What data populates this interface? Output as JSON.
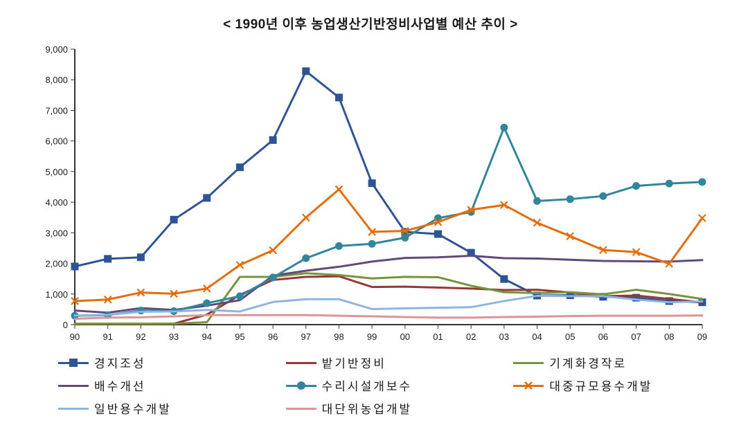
{
  "title": "< 1990년 이후 농업생산기반정비사업별 예산 추이 >",
  "chart": {
    "type": "line",
    "background_color": "#ffffff",
    "axis_color": "#333333",
    "axis_line_width": 2,
    "grid_on": false,
    "font_family": "Malgun Gothic",
    "title_fontsize": 19,
    "label_fontsize": 13,
    "legend_fontsize": 17,
    "aspect_width": 1070,
    "aspect_height": 627,
    "x": {
      "labels": [
        "90",
        "91",
        "92",
        "93",
        "94",
        "95",
        "96",
        "97",
        "98",
        "99",
        "00",
        "01",
        "02",
        "03",
        "04",
        "05",
        "06",
        "07",
        "08",
        "09"
      ]
    },
    "y": {
      "lim": [
        0,
        9000
      ],
      "tick_step": 1000,
      "tick_labels": [
        "0",
        "1,000",
        "2,000",
        "3,000",
        "4,000",
        "5,000",
        "6,000",
        "7,000",
        "8,000",
        "9,000"
      ]
    },
    "series": [
      {
        "id": "gyeongji",
        "name": "경지조성",
        "color": "#2f5496",
        "marker": "square",
        "marker_size": 10,
        "line_width": 3,
        "values": [
          1900,
          2150,
          2200,
          3430,
          4140,
          5140,
          6030,
          8280,
          7420,
          4620,
          3030,
          2960,
          2350,
          1490,
          950,
          960,
          910,
          880,
          770,
          730
        ]
      },
      {
        "id": "batgiban",
        "name": "밭기반정비",
        "color": "#953735",
        "marker": "none",
        "marker_size": 0,
        "line_width": 3,
        "values": [
          20,
          20,
          20,
          30,
          330,
          970,
          1460,
          1560,
          1580,
          1230,
          1240,
          1210,
          1180,
          1130,
          1140,
          1050,
          930,
          950,
          840,
          730
        ]
      },
      {
        "id": "gigyehwa",
        "name": "기계화경작로",
        "color": "#77933c",
        "marker": "none",
        "marker_size": 0,
        "line_width": 3,
        "values": [
          30,
          30,
          30,
          30,
          80,
          1560,
          1560,
          1680,
          1620,
          1510,
          1560,
          1550,
          1270,
          1060,
          1030,
          1060,
          990,
          1140,
          1000,
          840
        ]
      },
      {
        "id": "baesu",
        "name": "배수개선",
        "color": "#604a7b",
        "marker": "none",
        "marker_size": 0,
        "line_width": 3,
        "values": [
          460,
          390,
          540,
          480,
          620,
          800,
          1600,
          1760,
          1890,
          2060,
          2180,
          2200,
          2250,
          2170,
          2160,
          2120,
          2080,
          2070,
          2060,
          2110
        ]
      },
      {
        "id": "surisiseol",
        "name": "수리시설개보수",
        "color": "#31859c",
        "marker": "circle",
        "marker_size": 10,
        "line_width": 3,
        "values": [
          290,
          310,
          460,
          440,
          700,
          930,
          1540,
          2170,
          2570,
          2640,
          2840,
          3480,
          3680,
          6440,
          4040,
          4100,
          4200,
          4530,
          4610,
          4660
        ]
      },
      {
        "id": "daejung",
        "name": "대중규모용수개발",
        "color": "#e46c0a",
        "marker": "x",
        "marker_size": 10,
        "line_width": 3,
        "values": [
          770,
          820,
          1050,
          1010,
          1180,
          1950,
          2430,
          3500,
          4420,
          3030,
          3060,
          3350,
          3750,
          3910,
          3330,
          2890,
          2440,
          2370,
          1990,
          3480
        ]
      },
      {
        "id": "ilban",
        "name": "일반용수개발",
        "color": "#8eb4e3",
        "marker": "none",
        "marker_size": 0,
        "line_width": 3,
        "values": [
          300,
          320,
          420,
          430,
          480,
          430,
          740,
          830,
          830,
          510,
          530,
          550,
          570,
          770,
          940,
          930,
          930,
          820,
          730,
          760
        ]
      },
      {
        "id": "daedanwi",
        "name": "대단위농업개발",
        "color": "#d99694",
        "marker": "none",
        "marker_size": 0,
        "line_width": 3,
        "values": [
          190,
          230,
          240,
          270,
          310,
          310,
          310,
          310,
          290,
          270,
          250,
          230,
          230,
          250,
          260,
          280,
          290,
          290,
          290,
          300
        ]
      }
    ],
    "legend": {
      "position": "bottom",
      "columns": 3
    }
  }
}
